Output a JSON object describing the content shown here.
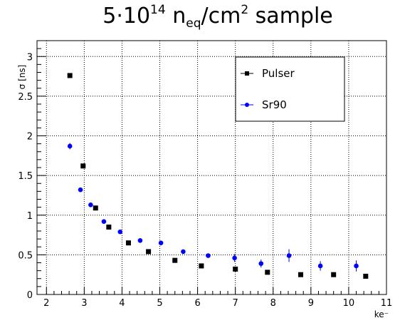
{
  "title": {
    "prefix": "5·10",
    "exponent": "14",
    "n": " n",
    "sub": "eq",
    "unit": "/cm",
    "unit_exp": "2",
    "suffix": " sample"
  },
  "chart_data": {
    "type": "scatter",
    "xlabel": "ke⁻",
    "ylabel": "σ [ns]",
    "xlim": [
      1.75,
      11
    ],
    "ylim": [
      0,
      3.2
    ],
    "xticks": [
      2,
      3,
      4,
      5,
      6,
      7,
      8,
      9,
      10,
      11
    ],
    "yticks": [
      0,
      0.5,
      1,
      1.5,
      2,
      2.5,
      3
    ],
    "xtick_labels": [
      "2",
      "3",
      "4",
      "5",
      "6",
      "7",
      "8",
      "9",
      "10",
      "11"
    ],
    "ytick_labels": [
      "0",
      "0.5",
      "1",
      "1.5",
      "2",
      "2.5",
      "3"
    ],
    "grid": true,
    "legend_position": "top-right",
    "series": [
      {
        "name": "Pulser",
        "marker": "square",
        "color": "#000000",
        "points": [
          {
            "x": 2.62,
            "y": 2.76
          },
          {
            "x": 2.97,
            "y": 1.62
          },
          {
            "x": 3.3,
            "y": 1.09
          },
          {
            "x": 3.65,
            "y": 0.85
          },
          {
            "x": 4.17,
            "y": 0.65
          },
          {
            "x": 4.7,
            "y": 0.54
          },
          {
            "x": 5.4,
            "y": 0.43
          },
          {
            "x": 6.1,
            "y": 0.36
          },
          {
            "x": 7.0,
            "y": 0.32
          },
          {
            "x": 7.85,
            "y": 0.28
          },
          {
            "x": 8.73,
            "y": 0.25
          },
          {
            "x": 9.6,
            "y": 0.25
          },
          {
            "x": 10.45,
            "y": 0.23
          }
        ]
      },
      {
        "name": "Sr90",
        "marker": "circle",
        "color": "#0000ff",
        "points": [
          {
            "x": 2.62,
            "y": 1.87,
            "err": 0.04
          },
          {
            "x": 2.9,
            "y": 1.32,
            "err": 0.0
          },
          {
            "x": 3.17,
            "y": 1.13,
            "err": 0.0
          },
          {
            "x": 3.52,
            "y": 0.92,
            "err": 0.0
          },
          {
            "x": 3.95,
            "y": 0.79,
            "err": 0.0
          },
          {
            "x": 4.48,
            "y": 0.68,
            "err": 0.0
          },
          {
            "x": 5.03,
            "y": 0.65,
            "err": 0.0
          },
          {
            "x": 5.62,
            "y": 0.54,
            "err": 0.0
          },
          {
            "x": 6.28,
            "y": 0.49,
            "err": 0.0
          },
          {
            "x": 6.98,
            "y": 0.46,
            "err": 0.05
          },
          {
            "x": 7.68,
            "y": 0.39,
            "err": 0.05
          },
          {
            "x": 8.42,
            "y": 0.49,
            "err": 0.08
          },
          {
            "x": 9.25,
            "y": 0.36,
            "err": 0.06
          },
          {
            "x": 10.2,
            "y": 0.36,
            "err": 0.07
          }
        ]
      }
    ]
  }
}
